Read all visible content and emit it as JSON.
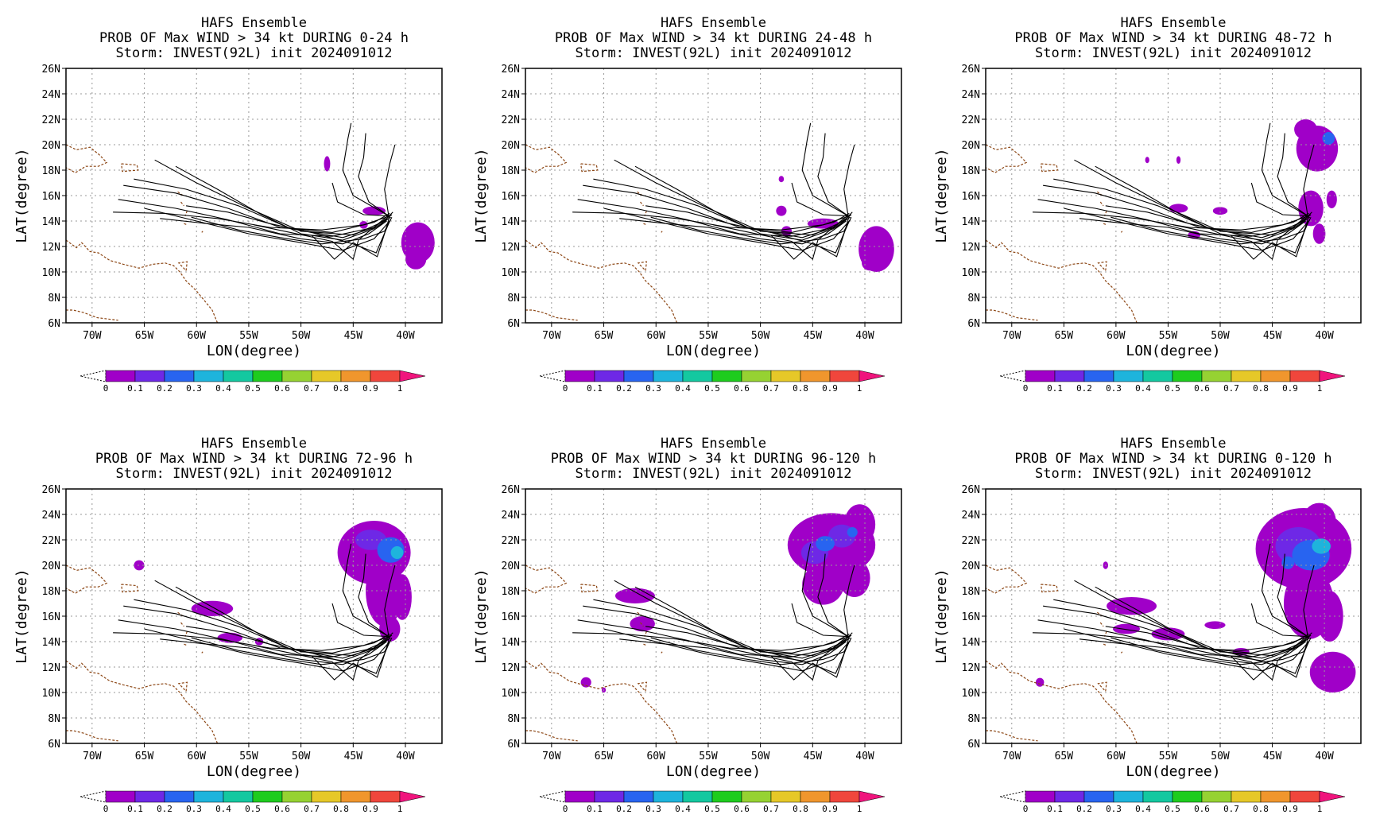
{
  "panels": [
    {
      "title_line1": "HAFS Ensemble",
      "title_line2": "PROB OF Max WIND > 34 kt DURING  0-24 h",
      "title_line3": "Storm: INVEST(92L) init 2024091012"
    },
    {
      "title_line1": "HAFS Ensemble",
      "title_line2": "PROB OF Max WIND > 34 kt DURING 24-48 h",
      "title_line3": "Storm: INVEST(92L) init 2024091012"
    },
    {
      "title_line1": "HAFS Ensemble",
      "title_line2": "PROB OF Max WIND > 34 kt DURING 48-72 h",
      "title_line3": "Storm: INVEST(92L) init 2024091012"
    },
    {
      "title_line1": "HAFS Ensemble",
      "title_line2": "PROB OF Max WIND > 34 kt DURING 72-96 h",
      "title_line3": "Storm: INVEST(92L) init 2024091012"
    },
    {
      "title_line1": "HAFS Ensemble",
      "title_line2": "PROB OF Max WIND > 34 kt DURING 96-120 h",
      "title_line3": "Storm: INVEST(92L) init 2024091012"
    },
    {
      "title_line1": "HAFS Ensemble",
      "title_line2": "PROB OF Max WIND > 34 kt DURING 0-120 h",
      "title_line3": "Storm: INVEST(92L) init 2024091012"
    }
  ],
  "axes": {
    "xlabel": "LON(degree)",
    "ylabel": "LAT(degree)",
    "lon_ticks": [
      "70W",
      "65W",
      "60W",
      "55W",
      "50W",
      "45W",
      "40W"
    ],
    "lat_ticks": [
      "6N",
      "8N",
      "10N",
      "12N",
      "14N",
      "16N",
      "18N",
      "20N",
      "22N",
      "24N",
      "26N"
    ],
    "lon_range": [
      -72.5,
      -36.5
    ],
    "lat_range": [
      6,
      26
    ],
    "grid": "dotted"
  },
  "colorbar": {
    "labels": [
      "0",
      "0.1",
      "0.2",
      "0.3",
      "0.4",
      "0.5",
      "0.6",
      "0.7",
      "0.8",
      "0.9",
      "1"
    ],
    "colors": [
      "#a000c8",
      "#6e28e6",
      "#2864f0",
      "#1eb4dc",
      "#14c8a0",
      "#1ecc1e",
      "#96d232",
      "#e6c828",
      "#f0962d",
      "#f0463c",
      "#f0147d"
    ]
  },
  "chart_data": {
    "type": "heatmap",
    "variable": "probability of max wind > 34 kt",
    "probability_regions": [
      {
        "panel": 0,
        "regions": [
          {
            "lon": -38.8,
            "lat": 12.3,
            "prob": 0.05
          },
          {
            "lon": -43.0,
            "lat": 14.8,
            "prob": 0.05
          },
          {
            "lon": -47.5,
            "lat": 18.5,
            "prob": 0.05
          },
          {
            "lon": -44.0,
            "lat": 13.6,
            "prob": 0.05
          }
        ]
      },
      {
        "panel": 1,
        "regions": [
          {
            "lon": -39.0,
            "lat": 11.8,
            "prob": 0.05
          },
          {
            "lon": -44.0,
            "lat": 13.8,
            "prob": 0.05
          },
          {
            "lon": -47.5,
            "lat": 13.2,
            "prob": 0.05
          },
          {
            "lon": -48.0,
            "lat": 17.3,
            "prob": 0.05
          }
        ]
      },
      {
        "panel": 2,
        "regions": [
          {
            "lon": -40.5,
            "lat": 19.8,
            "prob": 0.1
          },
          {
            "lon": -39.5,
            "lat": 20.5,
            "prob": 0.3
          },
          {
            "lon": -41.3,
            "lat": 14.5,
            "prob": 0.1
          },
          {
            "lon": -39.0,
            "lat": 15.8,
            "prob": 0.05
          },
          {
            "lon": -54.0,
            "lat": 15.0,
            "prob": 0.05
          },
          {
            "lon": -50.0,
            "lat": 14.8,
            "prob": 0.05
          },
          {
            "lon": -52.5,
            "lat": 12.9,
            "prob": 0.05
          }
        ]
      },
      {
        "panel": 3,
        "regions": [
          {
            "lon": -43.0,
            "lat": 21.2,
            "prob": 0.1
          },
          {
            "lon": -41.2,
            "lat": 21.2,
            "prob": 0.3
          },
          {
            "lon": -40.5,
            "lat": 18.0,
            "prob": 0.05
          },
          {
            "lon": -42.0,
            "lat": 16.0,
            "prob": 0.05
          },
          {
            "lon": -58.5,
            "lat": 16.6,
            "prob": 0.05
          },
          {
            "lon": -56.8,
            "lat": 14.3,
            "prob": 0.05
          },
          {
            "lon": -65.5,
            "lat": 20.0,
            "prob": 0.05
          }
        ]
      },
      {
        "panel": 4,
        "regions": [
          {
            "lon": -43.2,
            "lat": 21.5,
            "prob": 0.1
          },
          {
            "lon": -43.5,
            "lat": 21.5,
            "prob": 0.2
          },
          {
            "lon": -41.3,
            "lat": 22.6,
            "prob": 0.2
          },
          {
            "lon": -62.0,
            "lat": 17.6,
            "prob": 0.05
          },
          {
            "lon": -61.5,
            "lat": 15.3,
            "prob": 0.05
          },
          {
            "lon": -66.7,
            "lat": 10.8,
            "prob": 0.05
          }
        ]
      },
      {
        "panel": 5,
        "regions": [
          {
            "lon": -42.0,
            "lat": 21.0,
            "prob": 0.1
          },
          {
            "lon": -41.5,
            "lat": 21.0,
            "prob": 0.3
          },
          {
            "lon": -40.2,
            "lat": 21.5,
            "prob": 0.4
          },
          {
            "lon": -39.0,
            "lat": 11.7,
            "prob": 0.1
          },
          {
            "lon": -58.5,
            "lat": 16.8,
            "prob": 0.05
          },
          {
            "lon": -55.0,
            "lat": 14.5,
            "prob": 0.05
          },
          {
            "lon": -67.3,
            "lat": 10.8,
            "prob": 0.05
          },
          {
            "lon": -61.0,
            "lat": 20.0,
            "prob": 0.05
          }
        ]
      }
    ]
  },
  "icons": {
    "colorbar_min_extension": "triangle-hatched",
    "colorbar_max_extension": "triangle-magenta"
  }
}
